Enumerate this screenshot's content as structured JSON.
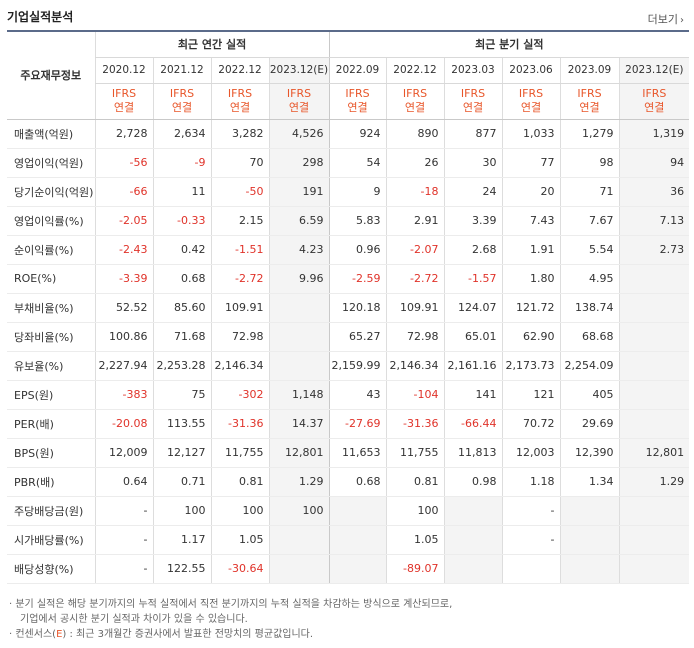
{
  "header": {
    "title": "기업실적분석",
    "more_label": "더보기"
  },
  "table": {
    "corner_label": "주요재무정보",
    "annual_group_label": "최근 연간 실적",
    "quarter_group_label": "최근 분기 실적",
    "ifrs_line1": "IFRS",
    "ifrs_line2": "연결",
    "annual_periods": [
      "2020.12",
      "2021.12",
      "2022.12",
      "2023.12(E)"
    ],
    "quarter_periods": [
      "2022.09",
      "2022.12",
      "2023.03",
      "2023.06",
      "2023.09",
      "2023.12(E)"
    ],
    "rows": [
      {
        "label": "매출액(억원)",
        "values": [
          "2,728",
          "2,634",
          "3,282",
          "4,526",
          "924",
          "890",
          "877",
          "1,033",
          "1,279",
          "1,319"
        ]
      },
      {
        "label": "영업이익(억원)",
        "values": [
          "-56",
          "-9",
          "70",
          "298",
          "54",
          "26",
          "30",
          "77",
          "98",
          "94"
        ]
      },
      {
        "label": "당기순이익(억원)",
        "values": [
          "-66",
          "11",
          "-50",
          "191",
          "9",
          "-18",
          "24",
          "20",
          "71",
          "36"
        ]
      },
      {
        "label": "영업이익률(%)",
        "values": [
          "-2.05",
          "-0.33",
          "2.15",
          "6.59",
          "5.83",
          "2.91",
          "3.39",
          "7.43",
          "7.67",
          "7.13"
        ]
      },
      {
        "label": "순이익률(%)",
        "values": [
          "-2.43",
          "0.42",
          "-1.51",
          "4.23",
          "0.96",
          "-2.07",
          "2.68",
          "1.91",
          "5.54",
          "2.73"
        ]
      },
      {
        "label": "ROE(%)",
        "values": [
          "-3.39",
          "0.68",
          "-2.72",
          "9.96",
          "-2.59",
          "-2.72",
          "-1.57",
          "1.80",
          "4.95",
          ""
        ]
      },
      {
        "label": "부채비율(%)",
        "values": [
          "52.52",
          "85.60",
          "109.91",
          "",
          "120.18",
          "109.91",
          "124.07",
          "121.72",
          "138.74",
          ""
        ]
      },
      {
        "label": "당좌비율(%)",
        "values": [
          "100.86",
          "71.68",
          "72.98",
          "",
          "65.27",
          "72.98",
          "65.01",
          "62.90",
          "68.68",
          ""
        ]
      },
      {
        "label": "유보율(%)",
        "values": [
          "2,227.94",
          "2,253.28",
          "2,146.34",
          "",
          "2,159.99",
          "2,146.34",
          "2,161.16",
          "2,173.73",
          "2,254.09",
          ""
        ]
      },
      {
        "label": "EPS(원)",
        "values": [
          "-383",
          "75",
          "-302",
          "1,148",
          "43",
          "-104",
          "141",
          "121",
          "405",
          ""
        ]
      },
      {
        "label": "PER(배)",
        "values": [
          "-20.08",
          "113.55",
          "-31.36",
          "14.37",
          "-27.69",
          "-31.36",
          "-66.44",
          "70.72",
          "29.69",
          ""
        ]
      },
      {
        "label": "BPS(원)",
        "values": [
          "12,009",
          "12,127",
          "11,755",
          "12,801",
          "11,653",
          "11,755",
          "11,813",
          "12,003",
          "12,390",
          "12,801"
        ]
      },
      {
        "label": "PBR(배)",
        "values": [
          "0.64",
          "0.71",
          "0.81",
          "1.29",
          "0.68",
          "0.81",
          "0.98",
          "1.18",
          "1.34",
          "1.29"
        ]
      },
      {
        "label": "주당배당금(원)",
        "values": [
          "-",
          "100",
          "100",
          "100",
          "",
          "100",
          "",
          "-",
          "",
          ""
        ]
      },
      {
        "label": "시가배당률(%)",
        "values": [
          "-",
          "1.17",
          "1.05",
          "",
          "",
          "1.05",
          "",
          "-",
          "",
          ""
        ]
      },
      {
        "label": "배당성향(%)",
        "values": [
          "-",
          "122.55",
          "-30.64",
          "",
          "",
          "-89.07",
          "",
          "",
          "",
          ""
        ]
      }
    ]
  },
  "notes": {
    "line1": "· 분기 실적은 해당 분기까지의 누적 실적에서 직전 분기까지의 누적 실적을 차감하는 방식으로 계산되므로,",
    "line2": "기업에서 공시한 분기 실적과 차이가 있을 수 있습니다.",
    "line3_prefix": "· 컨센서스(",
    "line3_e": "E",
    "line3_suffix": ") : 최근 3개월간 증권사에서 발표한 전망치의 평균값입니다."
  },
  "colors": {
    "negative": "#e0332a",
    "ifrs": "#e8562a",
    "border_top": "#5b6b8a",
    "shade": "#f4f4f4"
  }
}
